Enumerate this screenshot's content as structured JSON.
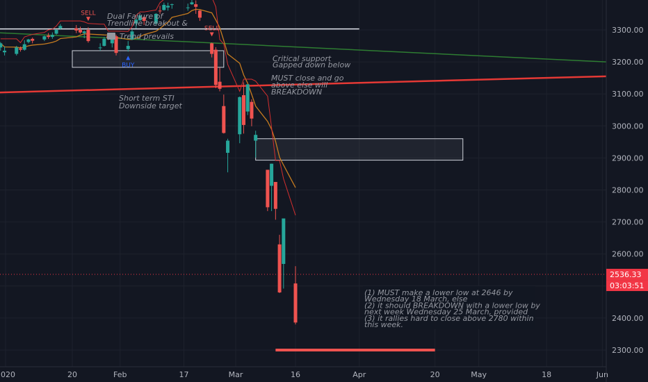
{
  "chart_data": {
    "type": "candlestick",
    "price_axis": {
      "ylim": [
        2230,
        3340
      ],
      "ticks": [
        "3300.00",
        "3200.00",
        "3100.00",
        "3000.00",
        "2900.00",
        "2800.00",
        "2700.00",
        "2600.00",
        "2500.00",
        "2400.00",
        "2300.00"
      ],
      "last_price": "2536.33",
      "countdown": "03:03:51"
    },
    "x_axis": {
      "labels": [
        "2020",
        "20",
        "Feb",
        "17",
        "Mar",
        "16",
        "Apr",
        "20",
        "May",
        "18",
        "Jun"
      ]
    },
    "candles": [
      {
        "date": "2020-01-02",
        "o": 3245,
        "h": 3262,
        "l": 3235,
        "c": 3258
      },
      {
        "date": "2020-01-03",
        "o": 3230,
        "h": 3248,
        "l": 3220,
        "c": 3235
      },
      {
        "date": "2020-01-06",
        "o": 3225,
        "h": 3250,
        "l": 3220,
        "c": 3245
      },
      {
        "date": "2020-01-07",
        "o": 3242,
        "h": 3248,
        "l": 3232,
        "c": 3238
      },
      {
        "date": "2020-01-08",
        "o": 3238,
        "h": 3268,
        "l": 3235,
        "c": 3255
      },
      {
        "date": "2020-01-09",
        "o": 3262,
        "h": 3272,
        "l": 3258,
        "c": 3270
      },
      {
        "date": "2020-01-10",
        "o": 3272,
        "h": 3276,
        "l": 3258,
        "c": 3266
      },
      {
        "date": "2020-01-13",
        "o": 3270,
        "h": 3282,
        "l": 3265,
        "c": 3280
      },
      {
        "date": "2020-01-14",
        "o": 3282,
        "h": 3290,
        "l": 3272,
        "c": 3278
      },
      {
        "date": "2020-01-15",
        "o": 3278,
        "h": 3292,
        "l": 3272,
        "c": 3284
      },
      {
        "date": "2020-01-16",
        "o": 3288,
        "h": 3302,
        "l": 3285,
        "c": 3300
      },
      {
        "date": "2020-01-17",
        "o": 3305,
        "h": 3318,
        "l": 3300,
        "c": 3312
      },
      {
        "date": "2020-01-21",
        "o": 3305,
        "h": 3315,
        "l": 3290,
        "c": 3298
      },
      {
        "date": "2020-01-22",
        "o": 3300,
        "h": 3310,
        "l": 3288,
        "c": 3292
      },
      {
        "date": "2020-01-23",
        "o": 3290,
        "h": 3298,
        "l": 3274,
        "c": 3295
      },
      {
        "date": "2020-01-24",
        "o": 3300,
        "h": 3308,
        "l": 3260,
        "c": 3265
      },
      {
        "date": "2020-01-27",
        "o": 3245,
        "h": 3258,
        "l": 3235,
        "c": 3245
      },
      {
        "date": "2020-01-28",
        "o": 3250,
        "h": 3278,
        "l": 3248,
        "c": 3272
      },
      {
        "date": "2020-01-29",
        "o": 3280,
        "h": 3286,
        "l": 3268,
        "c": 3275
      },
      {
        "date": "2020-01-30",
        "o": 3258,
        "h": 3285,
        "l": 3245,
        "c": 3282
      },
      {
        "date": "2020-01-31",
        "o": 3280,
        "h": 3285,
        "l": 3220,
        "c": 3228
      },
      {
        "date": "2020-02-03",
        "o": 3240,
        "h": 3265,
        "l": 3232,
        "c": 3250
      },
      {
        "date": "2020-02-04",
        "o": 3270,
        "h": 3300,
        "l": 3268,
        "c": 3295
      },
      {
        "date": "2020-02-05",
        "o": 3320,
        "h": 3335,
        "l": 3305,
        "c": 3332
      },
      {
        "date": "2020-02-06",
        "o": 3330,
        "h": 3346,
        "l": 3328,
        "c": 3345
      },
      {
        "date": "2020-02-07",
        "o": 3340,
        "h": 3342,
        "l": 3315,
        "c": 3328
      },
      {
        "date": "2020-02-10",
        "o": 3320,
        "h": 3352,
        "l": 3315,
        "c": 3350
      },
      {
        "date": "2020-02-11",
        "o": 3360,
        "h": 3375,
        "l": 3350,
        "c": 3358
      },
      {
        "date": "2020-02-12",
        "o": 3362,
        "h": 3385,
        "l": 3360,
        "c": 3378
      },
      {
        "date": "2020-02-13",
        "o": 3370,
        "h": 3385,
        "l": 3360,
        "c": 3375
      },
      {
        "date": "2020-02-14",
        "o": 3378,
        "h": 3382,
        "l": 3366,
        "c": 3380
      },
      {
        "date": "2020-02-18",
        "o": 3370,
        "h": 3382,
        "l": 3360,
        "c": 3370
      },
      {
        "date": "2020-02-19",
        "o": 3380,
        "h": 3396,
        "l": 3378,
        "c": 3386
      },
      {
        "date": "2020-02-20",
        "o": 3380,
        "h": 3392,
        "l": 3350,
        "c": 3372
      },
      {
        "date": "2020-02-21",
        "o": 3360,
        "h": 3362,
        "l": 3328,
        "c": 3338
      },
      {
        "date": "2020-02-24",
        "o": 3258,
        "h": 3260,
        "l": 3214,
        "c": 3225
      },
      {
        "date": "2020-02-25",
        "o": 3238,
        "h": 3246,
        "l": 3118,
        "c": 3128
      },
      {
        "date": "2020-02-26",
        "o": 3138,
        "h": 3182,
        "l": 3108,
        "c": 3116
      },
      {
        "date": "2020-02-27",
        "o": 3062,
        "h": 3098,
        "l": 2976,
        "c": 2978
      },
      {
        "date": "2020-02-28",
        "o": 2916,
        "h": 2960,
        "l": 2855,
        "c": 2954
      },
      {
        "date": "2020-03-02",
        "o": 2974,
        "h": 3092,
        "l": 2946,
        "c": 3090
      },
      {
        "date": "2020-03-03",
        "o": 3096,
        "h": 3136,
        "l": 2976,
        "c": 3003
      },
      {
        "date": "2020-03-04",
        "o": 3045,
        "h": 3130,
        "l": 3034,
        "c": 3130
      },
      {
        "date": "2020-03-05",
        "o": 3075,
        "h": 3083,
        "l": 2999,
        "c": 3023
      },
      {
        "date": "2020-03-06",
        "o": 2954,
        "h": 2985,
        "l": 2901,
        "c": 2972
      },
      {
        "date": "2020-03-09",
        "o": 2863,
        "h": 2863,
        "l": 2734,
        "c": 2746
      },
      {
        "date": "2020-03-10",
        "o": 2813,
        "h": 2882,
        "l": 2734,
        "c": 2882
      },
      {
        "date": "2020-03-11",
        "o": 2825,
        "h": 2825,
        "l": 2707,
        "c": 2741
      },
      {
        "date": "2020-03-12",
        "o": 2630,
        "h": 2660,
        "l": 2478,
        "c": 2480
      },
      {
        "date": "2020-03-13",
        "o": 2569,
        "h": 2711,
        "l": 2492,
        "c": 2711
      },
      {
        "date": "2020-03-16",
        "o": 2508,
        "h": 2562,
        "l": 2380,
        "c": 2386
      }
    ],
    "price_line": {
      "value": 2536.33,
      "color": "#f23645"
    },
    "trendlines": [
      {
        "name": "green",
        "color": "#2e7d32",
        "from": {
          "date": "2019-12-31",
          "price": 3292
        },
        "to": {
          "date": "2020-06-12",
          "price": 3200
        }
      },
      {
        "name": "red",
        "color": "#e53935",
        "from": {
          "date": "2019-12-31",
          "price": 3104
        },
        "to": {
          "date": "2020-06-12",
          "price": 3155
        }
      },
      {
        "name": "white-hline",
        "color": "#e0e3eb",
        "from": {
          "date": "2019-12-31",
          "price": 3303
        },
        "to": {
          "date": "2020-04-01",
          "price": 3303
        }
      },
      {
        "name": "support-level",
        "color": "#ef5350",
        "from": {
          "date": "2020-03-11",
          "price": 2300
        },
        "to": {
          "date": "2020-04-20",
          "price": 2300
        }
      }
    ],
    "boxes": [
      {
        "name": "critical-support-box",
        "from": {
          "date": "2020-01-20",
          "price": 3235
        },
        "to": {
          "date": "2020-02-27",
          "price": 3183
        }
      },
      {
        "name": "gap-box",
        "from": {
          "date": "2020-03-06",
          "price": 2960
        },
        "to": {
          "date": "2020-04-27",
          "price": 2893
        }
      }
    ],
    "annotations": [
      {
        "id": "a1",
        "text": "Dual Failure of"
      },
      {
        "id": "a2",
        "text": "Trendline breakout &"
      },
      {
        "id": "a3",
        "text": "Trend prevails"
      },
      {
        "id": "a4",
        "text": "Critical support"
      },
      {
        "id": "a5",
        "text": "Gapped down below"
      },
      {
        "id": "a6",
        "text": "MUST close and go"
      },
      {
        "id": "a7",
        "text": "above else will"
      },
      {
        "id": "a8",
        "text": "BREAKDOWN"
      },
      {
        "id": "a9",
        "text": "Short term STI"
      },
      {
        "id": "a10",
        "text": "Downside target"
      }
    ],
    "signals": [
      {
        "type": "sell",
        "label": "SELL",
        "date": "2020-01-24"
      },
      {
        "type": "sell",
        "label": "SELL",
        "date": "2020-02-24"
      },
      {
        "type": "buy",
        "label": "BUY",
        "date": "2020-02-03"
      }
    ],
    "notes_box": [
      "(1) MUST make a lower low at 2646 by",
      "Wednesday 18 March, else",
      "(2) it should BREAKDOWN with a lower low by",
      "next week Wednesday 25 March, provided",
      "(3) it rallies hard to close above 2780 within",
      "this week."
    ],
    "colors": {
      "up": "#26a69a",
      "down": "#ef5350",
      "background": "#131722",
      "grid": "#1e222d",
      "ma": "#c77c1f",
      "sti": "#d32f2f"
    }
  }
}
